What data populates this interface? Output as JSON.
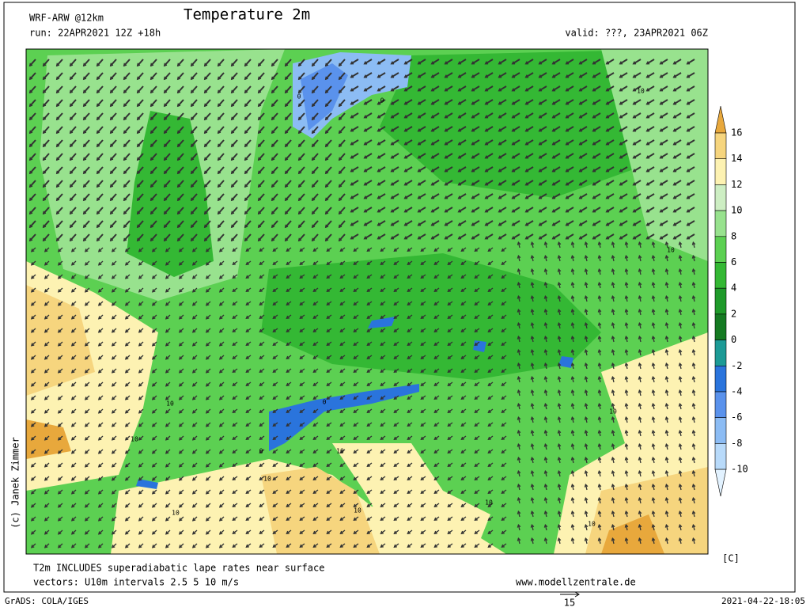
{
  "header": {
    "model": "WRF-ARW @12km",
    "title": "Temperature 2m",
    "run": "run: 22APR2021 12Z +18h",
    "valid": "valid: ???, 23APR2021 06Z"
  },
  "colorbar": {
    "levels": [
      16,
      14,
      12,
      10,
      8,
      6,
      4,
      2,
      0,
      -2,
      -4,
      -6,
      -8,
      -10
    ],
    "colors": [
      "#e8a83c",
      "#f6d57e",
      "#fdf2b2",
      "#cdeec3",
      "#98e28e",
      "#5cd052",
      "#34b834",
      "#1f9a2a",
      "#157a22",
      "#1c9a96",
      "#2a74dc",
      "#5a92ec",
      "#8cbcf4",
      "#b8dafa",
      "#e2f2ff"
    ],
    "unit": "[C]"
  },
  "map_labels": [
    "0",
    "0",
    "0",
    "0",
    "10",
    "10",
    "10",
    "10",
    "10",
    "10",
    "10",
    "10",
    "10",
    "10",
    "10"
  ],
  "credit": "(c) Janek Zimmer",
  "footer": {
    "note": "T2m INCLUDES superadiabatic lape rates near surface",
    "vectors": "vectors: U10m intervals 2.5 5 10 m/s",
    "website": "www.modellzentrale.de",
    "grads": "GrADS: COLA/IGES",
    "reference_vector": "15",
    "timestamp": "2021-04-22-18:05"
  }
}
